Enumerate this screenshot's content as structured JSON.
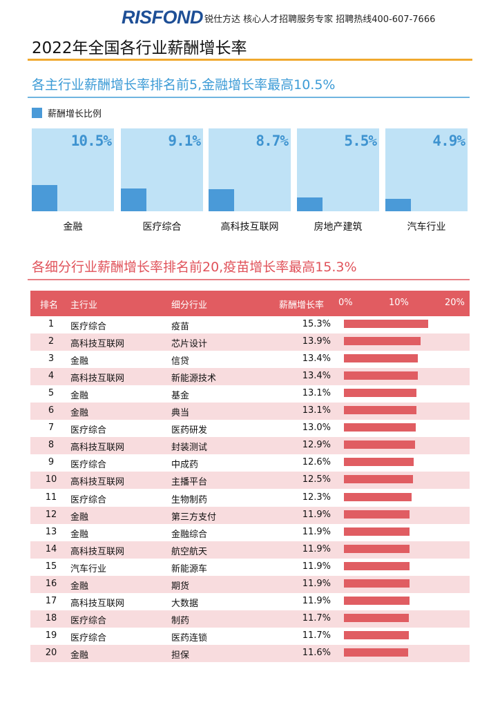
{
  "header": {
    "logo": "RISFOND",
    "tagline": "锐仕方达 核心人才招聘服务专家 招聘热线400-607-7666"
  },
  "page_title": "2022年全国各行业薪酬增长率",
  "section1": {
    "title": "各主行业薪酬增长率排名前5,金融增长率最高10.5%",
    "legend": "薪酬增长比例"
  },
  "section2": {
    "title": "各细分行业薪酬增长率排名前20,疫苗增长率最高15.3%",
    "headers": {
      "rank": "排名",
      "main": "主行业",
      "sub": "细分行业",
      "rate": "薪酬增长率",
      "tick0": "0%",
      "tick1": "10%",
      "tick2": "20%"
    }
  },
  "colors": {
    "blue_panel": "#bfe2f6",
    "blue_bar": "#4a9ad8",
    "red_header": "#e15c61",
    "red_bar": "#e05d62",
    "pink_row": "#f8dcde",
    "orange_rule": "#f0a92e"
  },
  "chart_data": [
    {
      "type": "bar",
      "title": "各主行业薪酬增长率排名前5,金融增长率最高10.5%",
      "legend": [
        "薪酬增长比例"
      ],
      "categories": [
        "金融",
        "医疗综合",
        "高科技互联网",
        "房地产建筑",
        "汽车行业"
      ],
      "values": [
        10.5,
        9.1,
        8.7,
        5.5,
        4.9
      ],
      "value_labels": [
        "10.5%",
        "9.1%",
        "8.7%",
        "5.5%",
        "4.9%"
      ],
      "ylim": [
        0,
        33
      ]
    },
    {
      "type": "table",
      "title": "各细分行业薪酬增长率排名前20,疫苗增长率最高15.3%",
      "xlim": [
        0,
        20
      ],
      "rows": [
        {
          "rank": "1",
          "main": "医疗综合",
          "sub": "疫苗",
          "rate": "15.3%",
          "value": 15.3
        },
        {
          "rank": "2",
          "main": "高科技互联网",
          "sub": "芯片设计",
          "rate": "13.9%",
          "value": 13.9
        },
        {
          "rank": "3",
          "main": "金融",
          "sub": "信贷",
          "rate": "13.4%",
          "value": 13.4
        },
        {
          "rank": "4",
          "main": "高科技互联网",
          "sub": "新能源技术",
          "rate": "13.4%",
          "value": 13.4
        },
        {
          "rank": "5",
          "main": "金融",
          "sub": "基金",
          "rate": "13.1%",
          "value": 13.1
        },
        {
          "rank": "6",
          "main": "金融",
          "sub": "典当",
          "rate": "13.1%",
          "value": 13.1
        },
        {
          "rank": "7",
          "main": "医疗综合",
          "sub": "医药研发",
          "rate": "13.0%",
          "value": 13.0
        },
        {
          "rank": "8",
          "main": "高科技互联网",
          "sub": "封装测试",
          "rate": "12.9%",
          "value": 12.9
        },
        {
          "rank": "9",
          "main": "医疗综合",
          "sub": "中成药",
          "rate": "12.6%",
          "value": 12.6
        },
        {
          "rank": "10",
          "main": "高科技互联网",
          "sub": "主播平台",
          "rate": "12.5%",
          "value": 12.5
        },
        {
          "rank": "11",
          "main": "医疗综合",
          "sub": "生物制药",
          "rate": "12.3%",
          "value": 12.3
        },
        {
          "rank": "12",
          "main": "金融",
          "sub": "第三方支付",
          "rate": "11.9%",
          "value": 11.9
        },
        {
          "rank": "13",
          "main": "金融",
          "sub": "金融综合",
          "rate": "11.9%",
          "value": 11.9
        },
        {
          "rank": "14",
          "main": "高科技互联网",
          "sub": "航空航天",
          "rate": "11.9%",
          "value": 11.9
        },
        {
          "rank": "15",
          "main": "汽车行业",
          "sub": "新能源车",
          "rate": "11.9%",
          "value": 11.9
        },
        {
          "rank": "16",
          "main": "金融",
          "sub": "期货",
          "rate": "11.9%",
          "value": 11.9
        },
        {
          "rank": "17",
          "main": "高科技互联网",
          "sub": "大数据",
          "rate": "11.9%",
          "value": 11.9
        },
        {
          "rank": "18",
          "main": "医疗综合",
          "sub": "制药",
          "rate": "11.7%",
          "value": 11.7
        },
        {
          "rank": "19",
          "main": "医疗综合",
          "sub": "医药连锁",
          "rate": "11.7%",
          "value": 11.7
        },
        {
          "rank": "20",
          "main": "金融",
          "sub": "担保",
          "rate": "11.6%",
          "value": 11.6
        }
      ]
    }
  ]
}
